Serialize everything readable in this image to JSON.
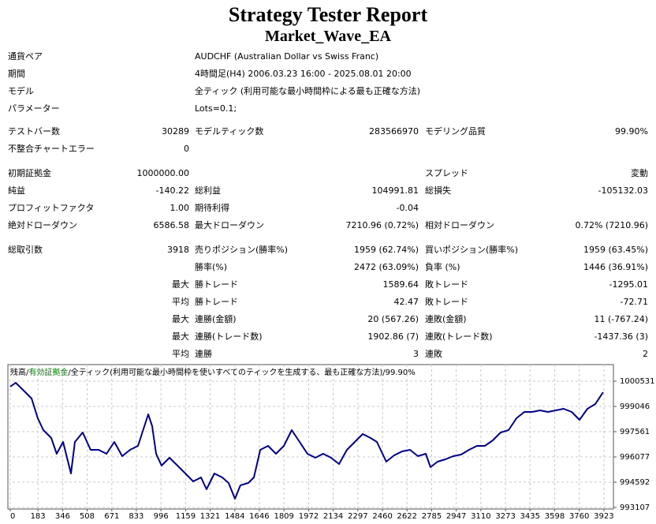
{
  "header": {
    "title": "Strategy Tester Report",
    "subtitle": "Market_Wave_EA"
  },
  "info": [
    {
      "label": "通貨ペア",
      "value": "AUDCHF (Australian Dollar vs Swiss Franc)"
    },
    {
      "label": "期間",
      "value": "4時間足(H4) 2006.03.23 16:00 - 2025.08.01 20:00"
    },
    {
      "label": "モデル",
      "value": "全ティック (利用可能な最小時間枠による最も正確な方法)"
    },
    {
      "label": "パラメーター",
      "value": "Lots=0.1;"
    }
  ],
  "stats": [
    [
      "テストバー数",
      "30289",
      "モデルティック数",
      "283566970",
      "モデリング品質",
      "99.90%"
    ],
    [
      "不整合チャートエラー",
      "0",
      null,
      null,
      null,
      null
    ],
    [
      "初期証拠金",
      "1000000.00",
      null,
      null,
      "スプレッド",
      "変動"
    ],
    [
      "純益",
      "-140.22",
      "総利益",
      "104991.81",
      "総損失",
      "-105132.03"
    ],
    [
      "プロフィットファクタ",
      "1.00",
      "期待利得",
      "-0.04",
      null,
      null
    ],
    [
      "絶対ドローダウン",
      "6586.58",
      "最大ドローダウン",
      "7210.96 (0.72%)",
      "相対ドローダウン",
      "0.72% (7210.96)"
    ],
    [
      "総取引数",
      "3918",
      "売りポジション(勝率%)",
      "1959 (62.74%)",
      "買いポジション(勝率%)",
      "1959 (63.45%)"
    ],
    [
      null,
      null,
      "勝率(%)",
      "2472 (63.09%)",
      "負率 (%)",
      "1446 (36.91%)"
    ],
    [
      null,
      "最大",
      "勝トレード",
      "1589.64",
      "敗トレード",
      "-1295.01"
    ],
    [
      null,
      "平均",
      "勝トレード",
      "42.47",
      "敗トレード",
      "-72.71"
    ],
    [
      null,
      "最大",
      "連勝(金額)",
      "20 (567.26)",
      "連敗(金額)",
      "11 (-767.24)"
    ],
    [
      null,
      "最大",
      "連勝(トレード数)",
      "1902.86 (7)",
      "連敗(トレード数)",
      "-1437.36 (3)"
    ],
    [
      null,
      "平均",
      "連勝",
      "3",
      "連敗",
      "2"
    ]
  ],
  "chart_data": {
    "type": "line",
    "separator": " / ",
    "model": "全ティック(利用可能な最小時間枠を使いすべてのティックを生成する、最も正確な方法)",
    "quality": "99.90%",
    "x": [
      0,
      36,
      89,
      141,
      182,
      219,
      271,
      307,
      349,
      401,
      427,
      479,
      531,
      584,
      636,
      688,
      740,
      792,
      844,
      912,
      938,
      964,
      1000,
      1052,
      1105,
      1157,
      1209,
      1261,
      1297,
      1349,
      1401,
      1443,
      1485,
      1521,
      1573,
      1610,
      1652,
      1704,
      1756,
      1808,
      1860,
      1912,
      1964,
      2016,
      2068,
      2120,
      2173,
      2225,
      2277,
      2329,
      2381,
      2423,
      2485,
      2537,
      2589,
      2641,
      2694,
      2746,
      2777,
      2824,
      2876,
      2928,
      2980,
      3032,
      3084,
      3136,
      3189,
      3241,
      3293,
      3345,
      3397,
      3449,
      3501,
      3553,
      3605,
      3657,
      3710,
      3762,
      3814,
      3866,
      3918
    ],
    "series": [
      {
        "name": "残高",
        "color": "#00008b",
        "values": [
          1000206,
          1000438,
          999974,
          999510,
          998350,
          997654,
          997190,
          996262,
          996958,
          995102,
          996958,
          997515,
          996494,
          996494,
          996262,
          996958,
          996123,
          996494,
          996726,
          998582,
          997886,
          996262,
          995566,
          996030,
          995566,
          995102,
          994638,
          994870,
          994174,
          995102,
          994870,
          994545,
          993617,
          994406,
          994545,
          994870,
          996494,
          996726,
          996262,
          996726,
          997654,
          996958,
          996262,
          996030,
          996262,
          996030,
          995659,
          996494,
          996958,
          997422,
          997190,
          996958,
          995798,
          996169,
          996401,
          996494,
          996123,
          996262,
          995473,
          995798,
          995938,
          996123,
          996216,
          996494,
          996726,
          996726,
          997051,
          997515,
          997654,
          998350,
          998721,
          998721,
          998814,
          998721,
          998814,
          998907,
          998721,
          998257,
          998907,
          999185,
          999881
        ]
      },
      {
        "name": "有効証拠金",
        "color": "#008000"
      }
    ],
    "xlim": [
      0,
      3986
    ],
    "ylim": [
      993014,
      1001505
    ],
    "xticks": [
      0,
      183,
      346,
      508,
      671,
      833,
      996,
      1159,
      1321,
      1484,
      1646,
      1809,
      1972,
      2134,
      2297,
      2460,
      2622,
      2785,
      2947,
      3110,
      3273,
      3435,
      3598,
      3760,
      3923
    ],
    "yticks": [
      1000531,
      999046,
      997561,
      996077,
      994592,
      993107
    ],
    "grid": true
  }
}
